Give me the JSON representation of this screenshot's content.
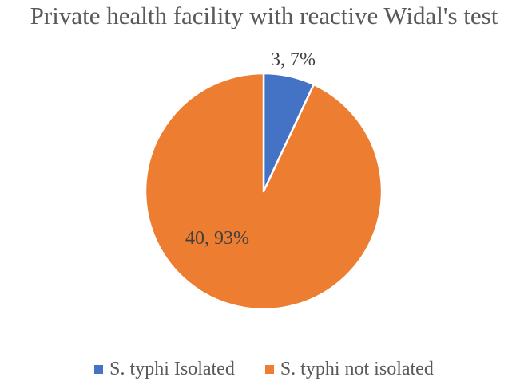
{
  "chart_data": {
    "type": "pie",
    "title": "Private health facility with reactive Widal's test",
    "categories": [
      "S. typhi Isolated",
      "S. typhi not isolated"
    ],
    "values": [
      3,
      40
    ],
    "percentages": [
      7,
      93
    ],
    "data_labels": [
      "3, 7%",
      "40, 93%"
    ],
    "colors": [
      "#4472C4",
      "#ED7D31"
    ],
    "legend_position": "bottom"
  }
}
